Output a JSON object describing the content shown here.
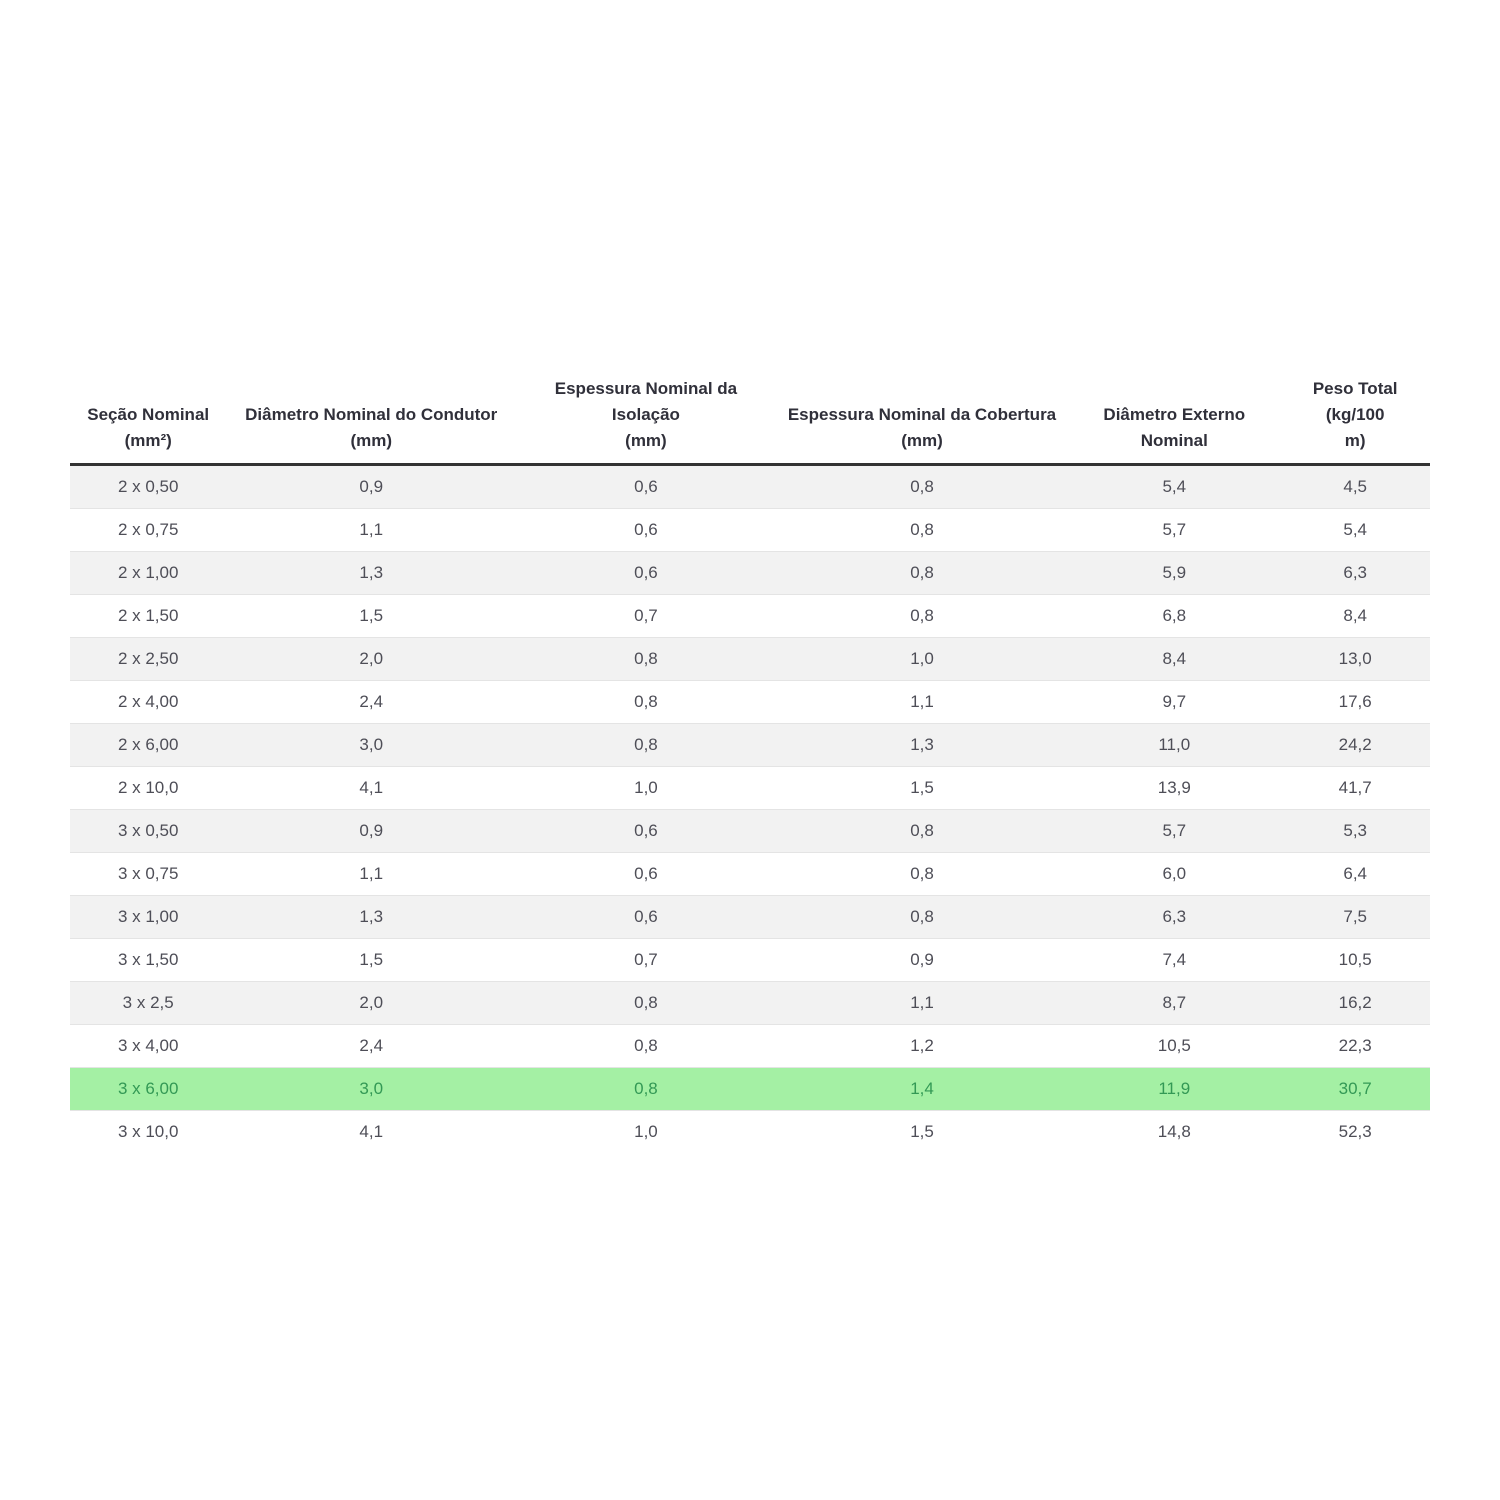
{
  "table": {
    "columns": [
      {
        "line1": "Seção Nominal",
        "line2": "(mm²)"
      },
      {
        "line1": "Diâmetro Nominal do Condutor",
        "line2": "(mm)"
      },
      {
        "line1": "Espessura Nominal da Isolação",
        "line2": "(mm)"
      },
      {
        "line1": "Espessura Nominal da Cobertura",
        "line2": "(mm)"
      },
      {
        "line1": "Diâmetro Externo",
        "line2": "Nominal"
      },
      {
        "line1": "Peso Total (kg/100",
        "line2": "m)"
      }
    ],
    "rows": [
      {
        "cells": [
          "2 x 0,50",
          "0,9",
          "0,6",
          "0,8",
          "5,4",
          "4,5"
        ],
        "highlight": false
      },
      {
        "cells": [
          "2 x 0,75",
          "1,1",
          "0,6",
          "0,8",
          "5,7",
          "5,4"
        ],
        "highlight": false
      },
      {
        "cells": [
          "2 x 1,00",
          "1,3",
          "0,6",
          "0,8",
          "5,9",
          "6,3"
        ],
        "highlight": false
      },
      {
        "cells": [
          "2 x 1,50",
          "1,5",
          "0,7",
          "0,8",
          "6,8",
          "8,4"
        ],
        "highlight": false
      },
      {
        "cells": [
          "2 x 2,50",
          "2,0",
          "0,8",
          "1,0",
          "8,4",
          "13,0"
        ],
        "highlight": false
      },
      {
        "cells": [
          "2 x 4,00",
          "2,4",
          "0,8",
          "1,1",
          "9,7",
          "17,6"
        ],
        "highlight": false
      },
      {
        "cells": [
          "2 x 6,00",
          "3,0",
          "0,8",
          "1,3",
          "11,0",
          "24,2"
        ],
        "highlight": false
      },
      {
        "cells": [
          "2 x 10,0",
          "4,1",
          "1,0",
          "1,5",
          "13,9",
          "41,7"
        ],
        "highlight": false
      },
      {
        "cells": [
          "3 x 0,50",
          "0,9",
          "0,6",
          "0,8",
          "5,7",
          "5,3"
        ],
        "highlight": false
      },
      {
        "cells": [
          "3 x 0,75",
          "1,1",
          "0,6",
          "0,8",
          "6,0",
          "6,4"
        ],
        "highlight": false
      },
      {
        "cells": [
          "3 x 1,00",
          "1,3",
          "0,6",
          "0,8",
          "6,3",
          "7,5"
        ],
        "highlight": false
      },
      {
        "cells": [
          "3 x 1,50",
          "1,5",
          "0,7",
          "0,9",
          "7,4",
          "10,5"
        ],
        "highlight": false
      },
      {
        "cells": [
          "3 x 2,5",
          "2,0",
          "0,8",
          "1,1",
          "8,7",
          "16,2"
        ],
        "highlight": false
      },
      {
        "cells": [
          "3 x 4,00",
          "2,4",
          "0,8",
          "1,2",
          "10,5",
          "22,3"
        ],
        "highlight": false
      },
      {
        "cells": [
          "3 x 6,00",
          "3,0",
          "0,8",
          "1,4",
          "11,9",
          "30,7"
        ],
        "highlight": true
      },
      {
        "cells": [
          "3 x 10,0",
          "4,1",
          "1,0",
          "1,5",
          "14,8",
          "52,3"
        ],
        "highlight": false
      }
    ],
    "colors": {
      "stripe_bg": "#f2f2f2",
      "highlight_bg": "#a4f0a4",
      "highlight_text": "#339955",
      "header_text": "#30303a",
      "body_text": "#4e4e57",
      "header_border": "#333333"
    }
  }
}
